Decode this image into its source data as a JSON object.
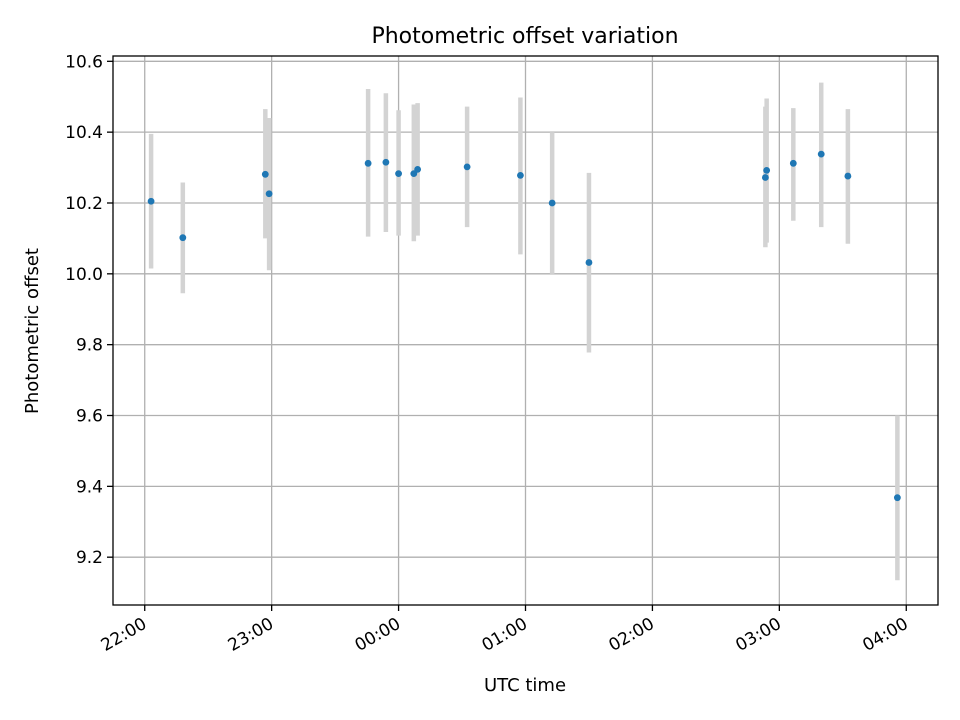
{
  "chart_data": {
    "type": "scatter",
    "title": "Photometric offset variation",
    "xlabel": "UTC time",
    "ylabel": "Photometric offset",
    "x_unit": "hours since 22:00 UTC",
    "xlim": [
      -0.25,
      6.25
    ],
    "ylim": [
      9.065,
      10.615
    ],
    "x_ticks": [
      {
        "value": 0,
        "label": "22:00"
      },
      {
        "value": 1,
        "label": "23:00"
      },
      {
        "value": 2,
        "label": "00:00"
      },
      {
        "value": 3,
        "label": "01:00"
      },
      {
        "value": 4,
        "label": "02:00"
      },
      {
        "value": 5,
        "label": "03:00"
      },
      {
        "value": 6,
        "label": "04:00"
      }
    ],
    "y_ticks": [
      {
        "value": 9.2,
        "label": "9.2"
      },
      {
        "value": 9.4,
        "label": "9.4"
      },
      {
        "value": 9.6,
        "label": "9.6"
      },
      {
        "value": 9.8,
        "label": "9.8"
      },
      {
        "value": 10.0,
        "label": "10.0"
      },
      {
        "value": 10.2,
        "label": "10.2"
      },
      {
        "value": 10.4,
        "label": "10.4"
      },
      {
        "value": 10.6,
        "label": "10.6"
      }
    ],
    "grid": true,
    "marker_color": "#1f77b4",
    "errorbar_color": "#d3d3d3",
    "points": [
      {
        "time": "22:03",
        "x": 0.05,
        "y": 10.205,
        "lo": 10.015,
        "hi": 10.395
      },
      {
        "time": "22:18",
        "x": 0.3,
        "y": 10.102,
        "lo": 9.945,
        "hi": 10.258
      },
      {
        "time": "22:57",
        "x": 0.95,
        "y": 10.281,
        "lo": 10.1,
        "hi": 10.465
      },
      {
        "time": "22:59",
        "x": 0.98,
        "y": 10.226,
        "lo": 10.01,
        "hi": 10.44
      },
      {
        "time": "23:46",
        "x": 1.76,
        "y": 10.312,
        "lo": 10.105,
        "hi": 10.522
      },
      {
        "time": "23:54",
        "x": 1.9,
        "y": 10.315,
        "lo": 10.118,
        "hi": 10.51
      },
      {
        "time": "00:00",
        "x": 2.0,
        "y": 10.283,
        "lo": 10.108,
        "hi": 10.462
      },
      {
        "time": "00:07",
        "x": 2.12,
        "y": 10.283,
        "lo": 10.092,
        "hi": 10.478
      },
      {
        "time": "00:09",
        "x": 2.15,
        "y": 10.295,
        "lo": 10.108,
        "hi": 10.482
      },
      {
        "time": "00:32",
        "x": 2.54,
        "y": 10.302,
        "lo": 10.132,
        "hi": 10.472
      },
      {
        "time": "00:57",
        "x": 2.96,
        "y": 10.278,
        "lo": 10.055,
        "hi": 10.498
      },
      {
        "time": "01:12",
        "x": 3.21,
        "y": 10.2,
        "lo": 10.0,
        "hi": 10.4
      },
      {
        "time": "01:29",
        "x": 3.5,
        "y": 10.032,
        "lo": 9.778,
        "hi": 10.285
      },
      {
        "time": "02:53",
        "x": 4.89,
        "y": 10.272,
        "lo": 10.075,
        "hi": 10.472
      },
      {
        "time": "02:54",
        "x": 4.9,
        "y": 10.292,
        "lo": 10.088,
        "hi": 10.495
      },
      {
        "time": "03:06",
        "x": 5.11,
        "y": 10.312,
        "lo": 10.15,
        "hi": 10.468
      },
      {
        "time": "03:19",
        "x": 5.33,
        "y": 10.338,
        "lo": 10.132,
        "hi": 10.54
      },
      {
        "time": "03:32",
        "x": 5.54,
        "y": 10.276,
        "lo": 10.085,
        "hi": 10.465
      },
      {
        "time": "03:55",
        "x": 5.93,
        "y": 9.368,
        "lo": 9.135,
        "hi": 9.6
      }
    ]
  }
}
